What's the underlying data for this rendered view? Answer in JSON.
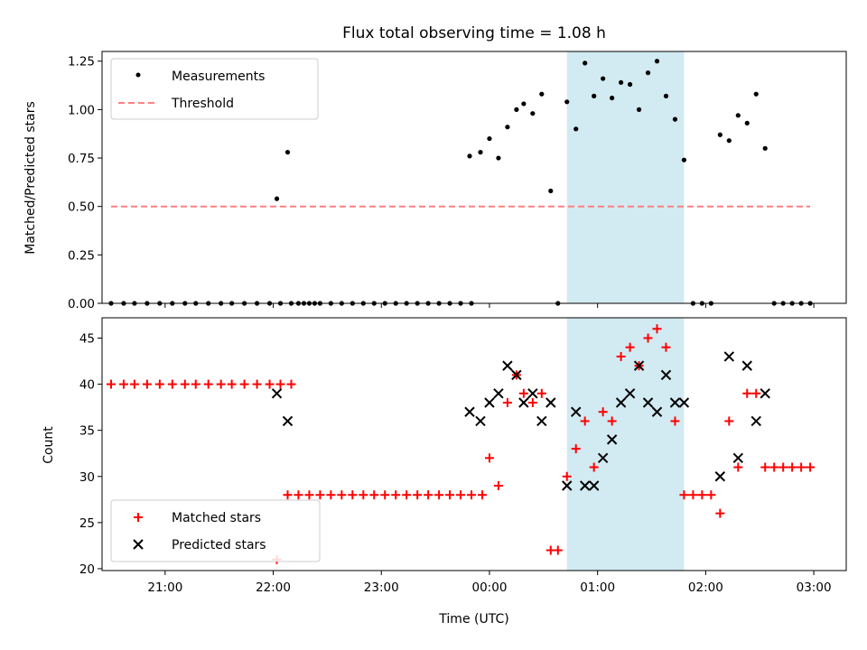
{
  "chart_data": [
    {
      "type": "scatter",
      "title": "Flux total observing time = 1.08 h",
      "ylabel": "Matched/Predicted stars",
      "ylim": [
        0,
        1.3
      ],
      "yticks": [
        "0.00",
        "0.25",
        "0.50",
        "0.75",
        "1.00",
        "1.25"
      ],
      "xlim": [
        "20:25",
        "03:18"
      ],
      "highlight_span": {
        "start": "00:43",
        "end": "01:48",
        "color": "#add8e6"
      },
      "legend_placement": "top-left",
      "series": [
        {
          "name": "Measurements",
          "color": "#000000",
          "marker": "dot",
          "points": [
            [
              "20:30",
              0
            ],
            [
              "20:37",
              0
            ],
            [
              "20:43",
              0
            ],
            [
              "20:50",
              0
            ],
            [
              "20:57",
              0
            ],
            [
              "21:04",
              0
            ],
            [
              "21:11",
              0
            ],
            [
              "21:17",
              0
            ],
            [
              "21:24",
              0
            ],
            [
              "21:31",
              0
            ],
            [
              "21:37",
              0
            ],
            [
              "21:44",
              0
            ],
            [
              "21:51",
              0
            ],
            [
              "21:58",
              0
            ],
            [
              "22:04",
              0
            ],
            [
              "22:10",
              0
            ],
            [
              "22:17",
              0
            ],
            [
              "22:23",
              0
            ],
            [
              "22:02",
              0.54
            ],
            [
              "22:08",
              0.78
            ],
            [
              "22:14",
              0
            ],
            [
              "22:20",
              0
            ],
            [
              "22:26",
              0
            ],
            [
              "22:32",
              0
            ],
            [
              "22:38",
              0
            ],
            [
              "22:44",
              0
            ],
            [
              "22:50",
              0
            ],
            [
              "22:56",
              0
            ],
            [
              "23:02",
              0
            ],
            [
              "23:08",
              0
            ],
            [
              "23:14",
              0
            ],
            [
              "23:20",
              0
            ],
            [
              "23:26",
              0
            ],
            [
              "23:32",
              0
            ],
            [
              "23:38",
              0
            ],
            [
              "23:44",
              0
            ],
            [
              "23:50",
              0
            ],
            [
              "23:49",
              0.76
            ],
            [
              "23:55",
              0.78
            ],
            [
              "00:00",
              0.85
            ],
            [
              "00:05",
              0.75
            ],
            [
              "00:10",
              0.91
            ],
            [
              "00:15",
              1.0
            ],
            [
              "00:19",
              1.03
            ],
            [
              "00:24",
              0.98
            ],
            [
              "00:29",
              1.08
            ],
            [
              "00:34",
              0.58
            ],
            [
              "00:38",
              0.0
            ],
            [
              "00:43",
              1.04
            ],
            [
              "00:48",
              0.9
            ],
            [
              "00:53",
              1.24
            ],
            [
              "00:58",
              1.07
            ],
            [
              "01:03",
              1.16
            ],
            [
              "01:08",
              1.06
            ],
            [
              "01:13",
              1.14
            ],
            [
              "01:18",
              1.13
            ],
            [
              "01:23",
              1.0
            ],
            [
              "01:28",
              1.19
            ],
            [
              "01:33",
              1.25
            ],
            [
              "01:38",
              1.07
            ],
            [
              "01:43",
              0.95
            ],
            [
              "01:48",
              0.74
            ],
            [
              "01:53",
              0
            ],
            [
              "01:58",
              0
            ],
            [
              "02:03",
              0
            ],
            [
              "02:08",
              0.87
            ],
            [
              "02:13",
              0.84
            ],
            [
              "02:18",
              0.97
            ],
            [
              "02:23",
              0.93
            ],
            [
              "02:28",
              1.08
            ],
            [
              "02:33",
              0.8
            ],
            [
              "02:38",
              0
            ],
            [
              "02:43",
              0
            ],
            [
              "02:48",
              0
            ],
            [
              "02:53",
              0
            ],
            [
              "02:58",
              0
            ]
          ]
        },
        {
          "name": "Threshold",
          "color": "#ff7f7f",
          "marker": "dashed-line",
          "points": [
            [
              "20:30",
              0.5
            ],
            [
              "02:58",
              0.5
            ]
          ]
        }
      ]
    },
    {
      "type": "scatter",
      "xlabel": "Time (UTC)",
      "ylabel": "Count",
      "ylim": [
        19.8,
        47.2
      ],
      "yticks": [
        "20",
        "25",
        "30",
        "35",
        "40",
        "45"
      ],
      "xticks": [
        "21:00",
        "22:00",
        "23:00",
        "00:00",
        "01:00",
        "02:00",
        "03:00"
      ],
      "xlim": [
        "20:25",
        "03:18"
      ],
      "highlight_span": {
        "start": "00:43",
        "end": "01:48",
        "color": "#add8e6"
      },
      "legend_placement": "bottom-left",
      "series": [
        {
          "name": "Matched stars",
          "color": "#ff0000",
          "marker": "plus",
          "points": [
            [
              "20:30",
              40
            ],
            [
              "20:37",
              40
            ],
            [
              "20:43",
              40
            ],
            [
              "20:50",
              40
            ],
            [
              "20:57",
              40
            ],
            [
              "21:04",
              40
            ],
            [
              "21:11",
              40
            ],
            [
              "21:17",
              40
            ],
            [
              "21:24",
              40
            ],
            [
              "21:31",
              40
            ],
            [
              "21:37",
              40
            ],
            [
              "21:44",
              40
            ],
            [
              "21:51",
              40
            ],
            [
              "21:58",
              40
            ],
            [
              "22:04",
              40
            ],
            [
              "22:10",
              40
            ],
            [
              "22:02",
              21
            ],
            [
              "22:08",
              28
            ],
            [
              "22:14",
              28
            ],
            [
              "22:20",
              28
            ],
            [
              "22:26",
              28
            ],
            [
              "22:32",
              28
            ],
            [
              "22:38",
              28
            ],
            [
              "22:44",
              28
            ],
            [
              "22:50",
              28
            ],
            [
              "22:56",
              28
            ],
            [
              "23:02",
              28
            ],
            [
              "23:08",
              28
            ],
            [
              "23:14",
              28
            ],
            [
              "23:20",
              28
            ],
            [
              "23:26",
              28
            ],
            [
              "23:32",
              28
            ],
            [
              "23:38",
              28
            ],
            [
              "23:44",
              28
            ],
            [
              "23:50",
              28
            ],
            [
              "23:56",
              28
            ],
            [
              "00:00",
              32
            ],
            [
              "00:05",
              29
            ],
            [
              "00:10",
              38
            ],
            [
              "00:15",
              41
            ],
            [
              "00:19",
              39
            ],
            [
              "00:24",
              38
            ],
            [
              "00:29",
              39
            ],
            [
              "00:34",
              22
            ],
            [
              "00:38",
              22
            ],
            [
              "00:43",
              30
            ],
            [
              "00:48",
              33
            ],
            [
              "00:53",
              36
            ],
            [
              "00:58",
              31
            ],
            [
              "01:03",
              37
            ],
            [
              "01:08",
              36
            ],
            [
              "01:13",
              43
            ],
            [
              "01:18",
              44
            ],
            [
              "01:23",
              42
            ],
            [
              "01:28",
              45
            ],
            [
              "01:33",
              46
            ],
            [
              "01:38",
              44
            ],
            [
              "01:43",
              36
            ],
            [
              "01:48",
              28
            ],
            [
              "01:53",
              28
            ],
            [
              "01:58",
              28
            ],
            [
              "02:03",
              28
            ],
            [
              "02:08",
              26
            ],
            [
              "02:13",
              36
            ],
            [
              "02:18",
              31
            ],
            [
              "02:23",
              39
            ],
            [
              "02:28",
              39
            ],
            [
              "02:33",
              31
            ],
            [
              "02:38",
              31
            ],
            [
              "02:43",
              31
            ],
            [
              "02:48",
              31
            ],
            [
              "02:53",
              31
            ],
            [
              "02:58",
              31
            ]
          ]
        },
        {
          "name": "Predicted stars",
          "color": "#000000",
          "marker": "x",
          "points": [
            [
              "22:02",
              39
            ],
            [
              "22:08",
              36
            ],
            [
              "23:49",
              37
            ],
            [
              "23:55",
              36
            ],
            [
              "00:00",
              38
            ],
            [
              "00:05",
              39
            ],
            [
              "00:10",
              42
            ],
            [
              "00:15",
              41
            ],
            [
              "00:19",
              38
            ],
            [
              "00:24",
              39
            ],
            [
              "00:29",
              36
            ],
            [
              "00:34",
              38
            ],
            [
              "00:43",
              29
            ],
            [
              "00:48",
              37
            ],
            [
              "00:53",
              29
            ],
            [
              "00:58",
              29
            ],
            [
              "01:03",
              32
            ],
            [
              "01:08",
              34
            ],
            [
              "01:13",
              38
            ],
            [
              "01:18",
              39
            ],
            [
              "01:23",
              42
            ],
            [
              "01:28",
              38
            ],
            [
              "01:33",
              37
            ],
            [
              "01:38",
              41
            ],
            [
              "01:43",
              38
            ],
            [
              "01:48",
              38
            ],
            [
              "02:08",
              30
            ],
            [
              "02:13",
              43
            ],
            [
              "02:18",
              32
            ],
            [
              "02:23",
              42
            ],
            [
              "02:28",
              36
            ],
            [
              "02:33",
              39
            ]
          ]
        }
      ]
    }
  ]
}
